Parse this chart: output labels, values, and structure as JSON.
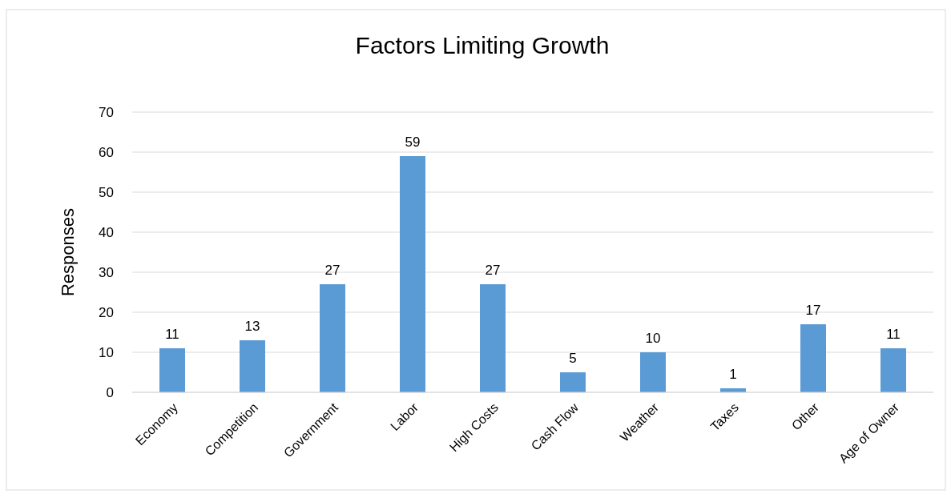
{
  "chart_data": {
    "type": "bar",
    "title": "Factors Limiting Growth",
    "ylabel": "Responses",
    "categories": [
      "Economy",
      "Competition",
      "Government",
      "Labor",
      "High Costs",
      "Cash Flow",
      "Weather",
      "Taxes",
      "Other",
      "Age of Owner"
    ],
    "values": [
      11,
      13,
      27,
      59,
      27,
      5,
      10,
      1,
      17,
      11
    ],
    "color": "#5b9bd5",
    "ylim": [
      0,
      70
    ],
    "yticks": [
      0,
      10,
      20,
      30,
      40,
      50,
      60,
      70
    ],
    "grid": "y",
    "data_labels": true
  }
}
